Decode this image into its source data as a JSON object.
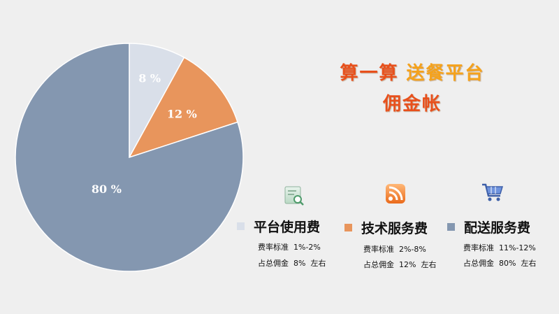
{
  "title": {
    "part1": "算一算",
    "part2": "送餐平台",
    "line2": "佣金帐"
  },
  "colors": {
    "title_red": "#e8501c",
    "title_orange": "#f5a21b"
  },
  "chart_data": {
    "type": "pie",
    "slices": [
      {
        "name": "平台使用费",
        "value": 8,
        "label": "8 %",
        "color": "#d9dfe9"
      },
      {
        "name": "技术服务费",
        "value": 12,
        "label": "12 %",
        "color": "#e8955c"
      },
      {
        "name": "配送服务费",
        "value": 80,
        "label": "80 %",
        "color": "#8497b0"
      }
    ],
    "start": "top",
    "direction": "clockwise"
  },
  "legend": [
    {
      "name": "平台使用费",
      "icon": "document-search-icon",
      "rate_label": "费率标准",
      "rate_value": "1%-2%",
      "share_label": "占总佣金",
      "share_value": "8%",
      "share_suffix": "左右"
    },
    {
      "name": "技术服务费",
      "icon": "rss-feed-icon",
      "rate_label": "费率标准",
      "rate_value": "2%-8%",
      "share_label": "占总佣金",
      "share_value": "12%",
      "share_suffix": "左右"
    },
    {
      "name": "配送服务费",
      "icon": "shopping-cart-icon",
      "rate_label": "费率标准",
      "rate_value": "11%-12%",
      "share_label": "占总佣金",
      "share_value": "80%",
      "share_suffix": "左右"
    }
  ]
}
